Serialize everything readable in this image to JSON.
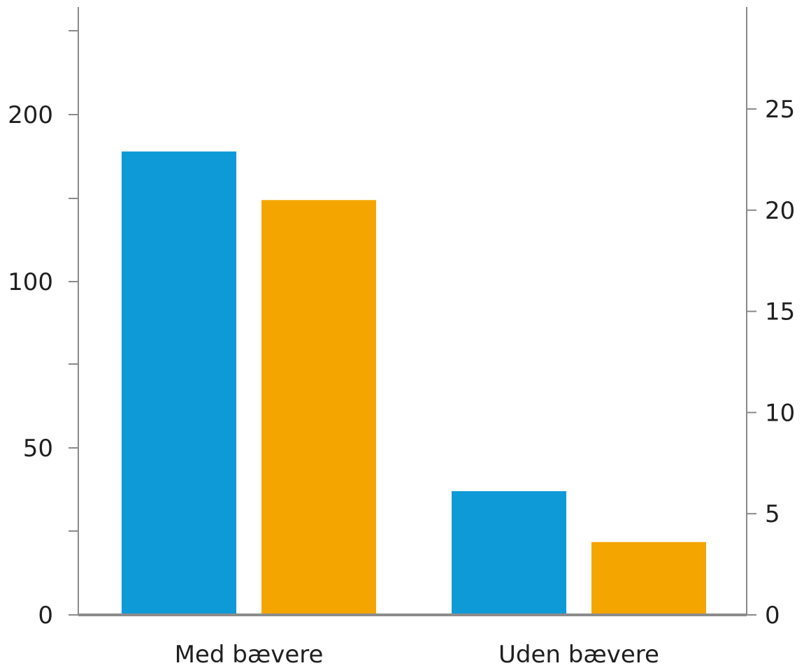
{
  "chart_data": {
    "type": "bar",
    "categories": [
      "Med bævere",
      "Uden bævere"
    ],
    "series": [
      {
        "values": [
          178,
          37
        ],
        "color": "#0e9ad7",
        "axis": "left"
      },
      {
        "values": [
          20.5,
          3.6
        ],
        "color": "#f5a500",
        "axis": "right"
      }
    ],
    "left_axis": {
      "ticks": [
        0,
        25,
        50,
        75,
        100,
        150,
        200,
        250
      ],
      "tick_labels": {
        "0": "0",
        "50": "50",
        "100": "100",
        "200": "200"
      }
    },
    "right_axis": {
      "ylim": [
        0,
        30
      ],
      "ticks": [
        0,
        5,
        10,
        15,
        20,
        25
      ],
      "tick_labels": [
        "0",
        "5",
        "10",
        "15",
        "20",
        "25"
      ]
    },
    "grid": false,
    "legend": "none",
    "xlabel": "",
    "ylabel": ""
  }
}
